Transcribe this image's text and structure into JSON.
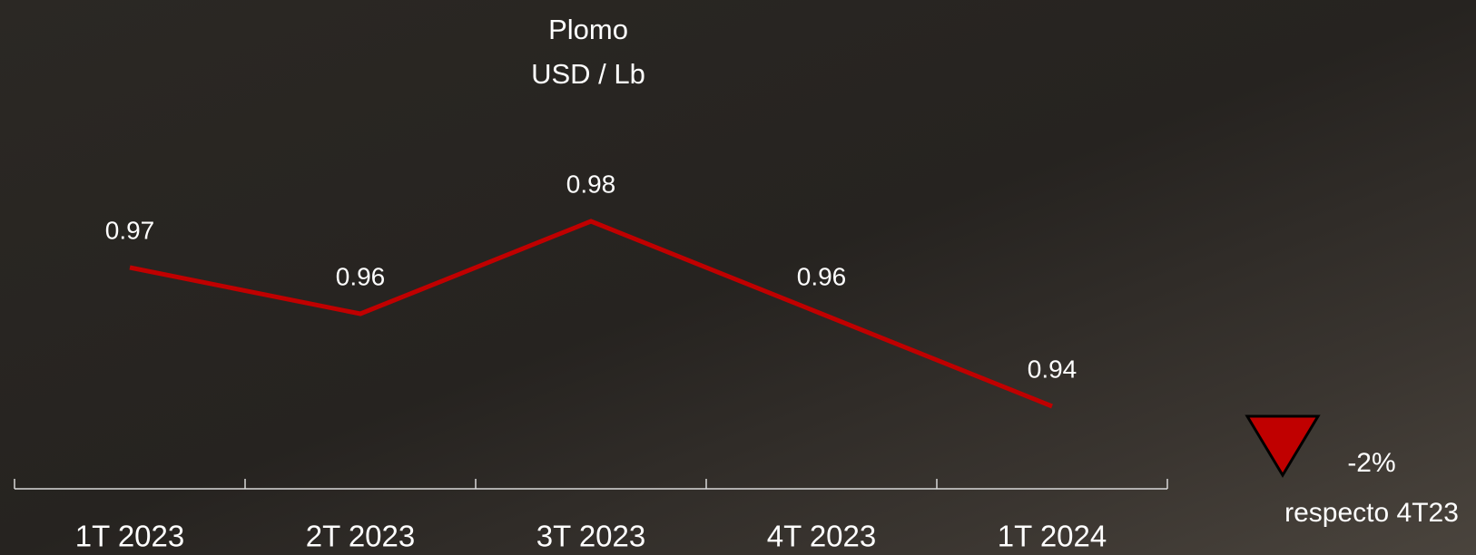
{
  "chart_data": {
    "type": "line",
    "title": "Plomo",
    "subtitle": "USD / Lb",
    "categories": [
      "1T 2023",
      "2T 2023",
      "3T 2023",
      "4T 2023",
      "1T 2024"
    ],
    "series": [
      {
        "name": "Plomo",
        "color": "#c00000",
        "values": [
          0.97,
          0.96,
          0.98,
          0.96,
          0.94
        ]
      }
    ],
    "annotations": [
      "-2%",
      "respecto 4T23"
    ],
    "annotation_marker_color": "#c00000"
  }
}
